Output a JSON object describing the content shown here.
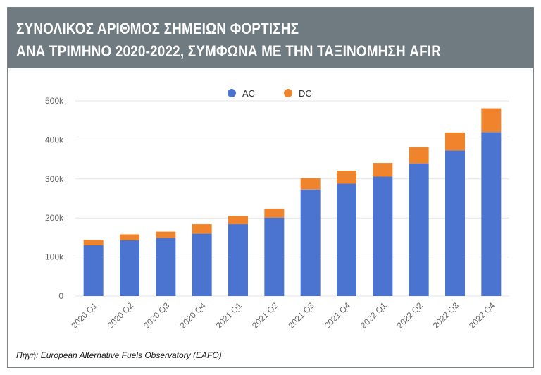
{
  "header": {
    "title_line1": "ΣΥΝΟΛΙΚΟΣ ΑΡΙΘΜΟΣ ΣΗΜΕΙΩΝ ΦΟΡΤΙΣΗΣ",
    "title_line2": "ΑΝΑ ΤΡΙΜΗΝΟ 2020-2022, ΣΥΜΦΩΝΑ ΜΕ ΤΗΝ ΤΑΞΙΝΟΜΗΣΗ AFIR"
  },
  "source": "Πηγή: European Alternative Fuels Observatory (EAFO)",
  "colors": {
    "header_bg": "#6f7b80",
    "ac": "#4a74cf",
    "dc": "#f0842c",
    "grid": "#e6e6e6",
    "tick_text": "#666666"
  },
  "chart_data": {
    "type": "bar",
    "stacked": true,
    "categories": [
      "2020 Q1",
      "2020 Q2",
      "2020 Q3",
      "2020 Q4",
      "2021 Q1",
      "2021 Q2",
      "2021 Q3",
      "2021 Q4",
      "2022 Q1",
      "2022 Q2",
      "2022 Q3",
      "2022 Q4"
    ],
    "series": [
      {
        "name": "AC",
        "color": "#4a74cf",
        "values": [
          130000,
          143000,
          149000,
          160000,
          184000,
          201000,
          273000,
          288000,
          306000,
          340000,
          373000,
          420000
        ]
      },
      {
        "name": "DC",
        "color": "#f0842c",
        "values": [
          14000,
          15000,
          16000,
          24000,
          21000,
          23000,
          29000,
          33000,
          35000,
          42000,
          46000,
          61000
        ]
      }
    ],
    "ylim": [
      0,
      500000
    ],
    "yticks": [
      0,
      100000,
      200000,
      300000,
      400000,
      500000
    ],
    "ytick_labels": [
      "0",
      "100k",
      "200k",
      "300k",
      "400k",
      "500k"
    ],
    "grid": true,
    "legend_position": "top-center",
    "xlabel": "",
    "ylabel": ""
  }
}
